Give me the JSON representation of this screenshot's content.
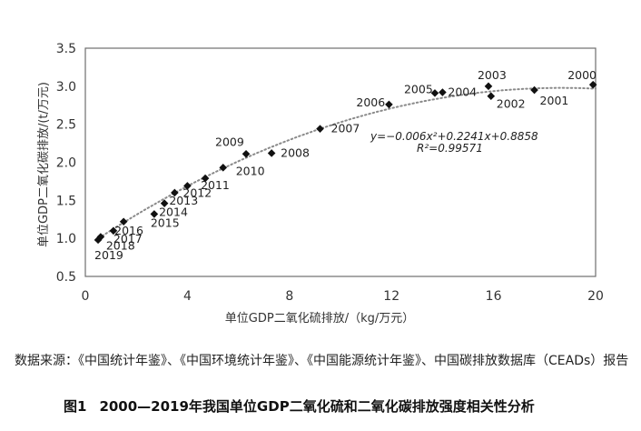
{
  "chart_data": {
    "type": "scatter",
    "title": "",
    "xlabel": "单位GDP二氧化硫排放/（kg/万元）",
    "ylabel": "单位GDP二氧化碳排放/(t/万元)",
    "xlim": [
      0,
      20
    ],
    "ylim": [
      0.5,
      3.5
    ],
    "x_ticks": [
      "0",
      "4",
      "8",
      "12",
      "16",
      "20"
    ],
    "y_ticks": [
      "0.5",
      "1.0",
      "1.5",
      "2.0",
      "2.5",
      "3.0",
      "3.5"
    ],
    "grid": false,
    "points": [
      {
        "label": "2000",
        "x": 19.9,
        "y": 3.02
      },
      {
        "label": "2001",
        "x": 17.6,
        "y": 2.95
      },
      {
        "label": "2002",
        "x": 15.9,
        "y": 2.87
      },
      {
        "label": "2003",
        "x": 15.8,
        "y": 3.0
      },
      {
        "label": "2004",
        "x": 14.0,
        "y": 2.92
      },
      {
        "label": "2005",
        "x": 13.7,
        "y": 2.91
      },
      {
        "label": "2006",
        "x": 11.9,
        "y": 2.76
      },
      {
        "label": "2007",
        "x": 9.2,
        "y": 2.44
      },
      {
        "label": "2008",
        "x": 7.3,
        "y": 2.12
      },
      {
        "label": "2009",
        "x": 6.3,
        "y": 2.11
      },
      {
        "label": "2010",
        "x": 5.4,
        "y": 1.93
      },
      {
        "label": "2011",
        "x": 4.7,
        "y": 1.79
      },
      {
        "label": "2012",
        "x": 4.0,
        "y": 1.69
      },
      {
        "label": "2013",
        "x": 3.5,
        "y": 1.6
      },
      {
        "label": "2014",
        "x": 3.1,
        "y": 1.46
      },
      {
        "label": "2015",
        "x": 2.7,
        "y": 1.32
      },
      {
        "label": "2016",
        "x": 1.5,
        "y": 1.22
      },
      {
        "label": "2017",
        "x": 1.1,
        "y": 1.1
      },
      {
        "label": "2018",
        "x": 0.6,
        "y": 1.02
      },
      {
        "label": "2019",
        "x": 0.5,
        "y": 0.98
      }
    ],
    "trendline": {
      "type": "polynomial",
      "coefficients": [
        -0.006,
        0.2241,
        0.8858
      ],
      "equation_text": "y=−0.006x²+0.2241x+0.8858",
      "r2_text": "R²=0.99571"
    }
  },
  "source_note": "数据来源：《中国统计年鉴》、《中国环境统计年鉴》、《中国能源统计年鉴》、中国碳排放数据库（CEADs）报告",
  "caption": {
    "number": "图1",
    "text": "2000—2019年我国单位GDP二氧化硫和二氧化碳排放强度相关性分析"
  }
}
